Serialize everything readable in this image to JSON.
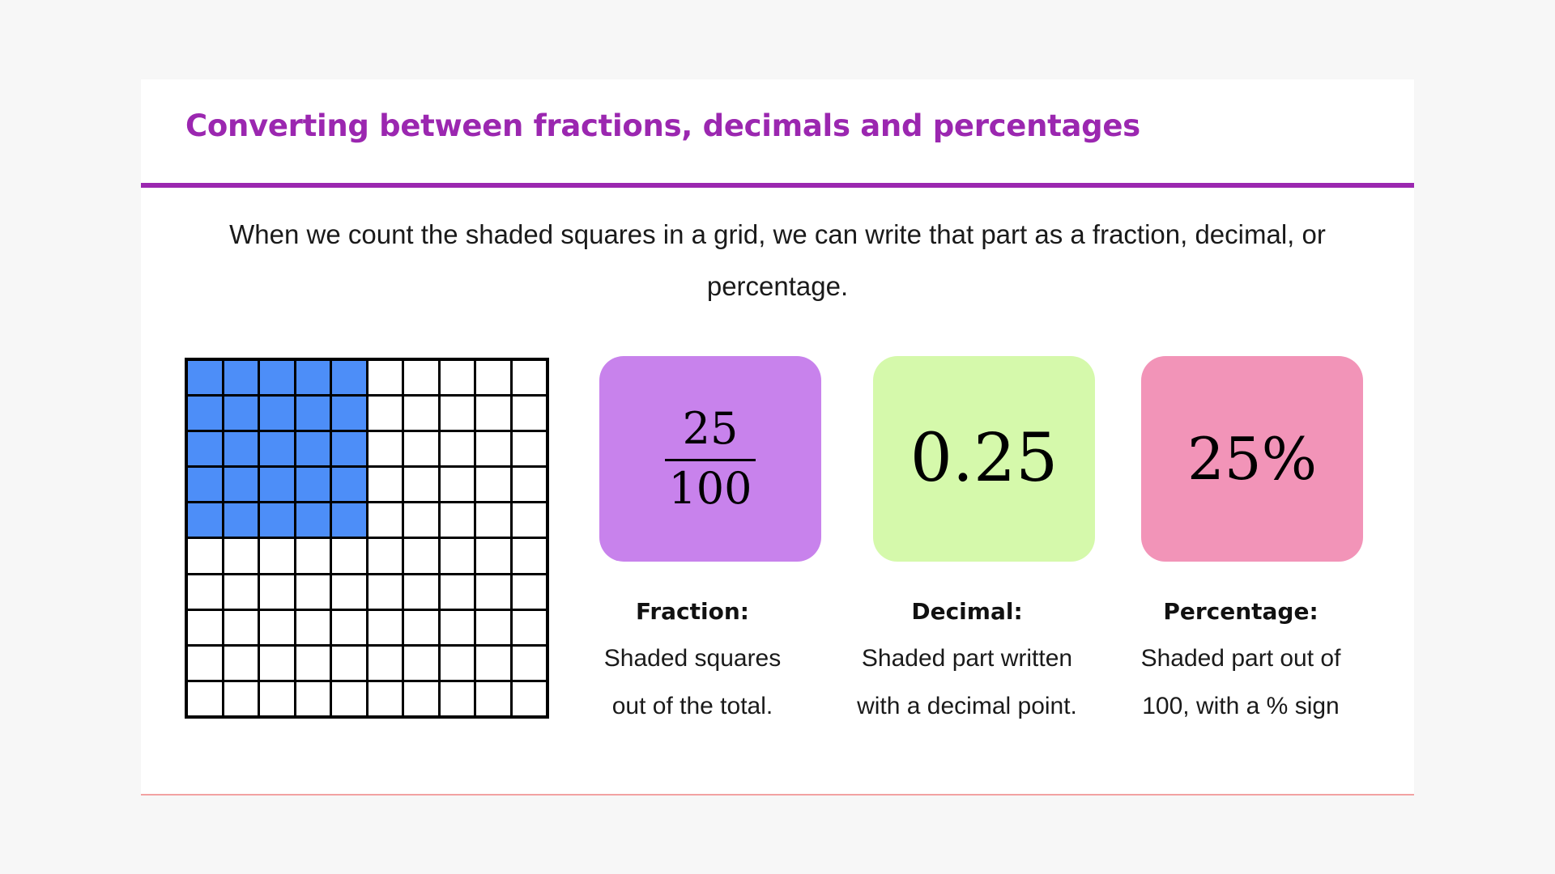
{
  "slide": {
    "title": "Converting between fractions, decimals and percentages",
    "intro": "When we count the shaded squares in a grid, we can write that part as a fraction, decimal, or percentage."
  },
  "grid": {
    "rows": 10,
    "columns": 10,
    "shaded_rows": 5,
    "shaded_columns": 5,
    "shaded_count": 25,
    "total": 100
  },
  "fraction_box": {
    "numerator": "25",
    "denominator": "100"
  },
  "decimal_box": {
    "value": "0.25"
  },
  "percentage_box": {
    "value": "25%"
  },
  "labels": {
    "fraction": {
      "title": "Fraction:",
      "line1": "Shaded squares",
      "line2": "out of the total."
    },
    "decimal": {
      "title": "Decimal:",
      "line1": "Shaded part written",
      "line2": "with a decimal point."
    },
    "percentage": {
      "title": "Percentage:",
      "line1": "Shaded part out of",
      "line2": "100, with a % sign"
    }
  },
  "colors": {
    "title": "#9b27b0",
    "rule": "#9b27b0",
    "shaded_square": "#4d8ef8",
    "fraction_box": "#c882ec",
    "decimal_box": "#d5f9ab",
    "percentage_box": "#f294b8",
    "background": "#f7f7f7"
  }
}
